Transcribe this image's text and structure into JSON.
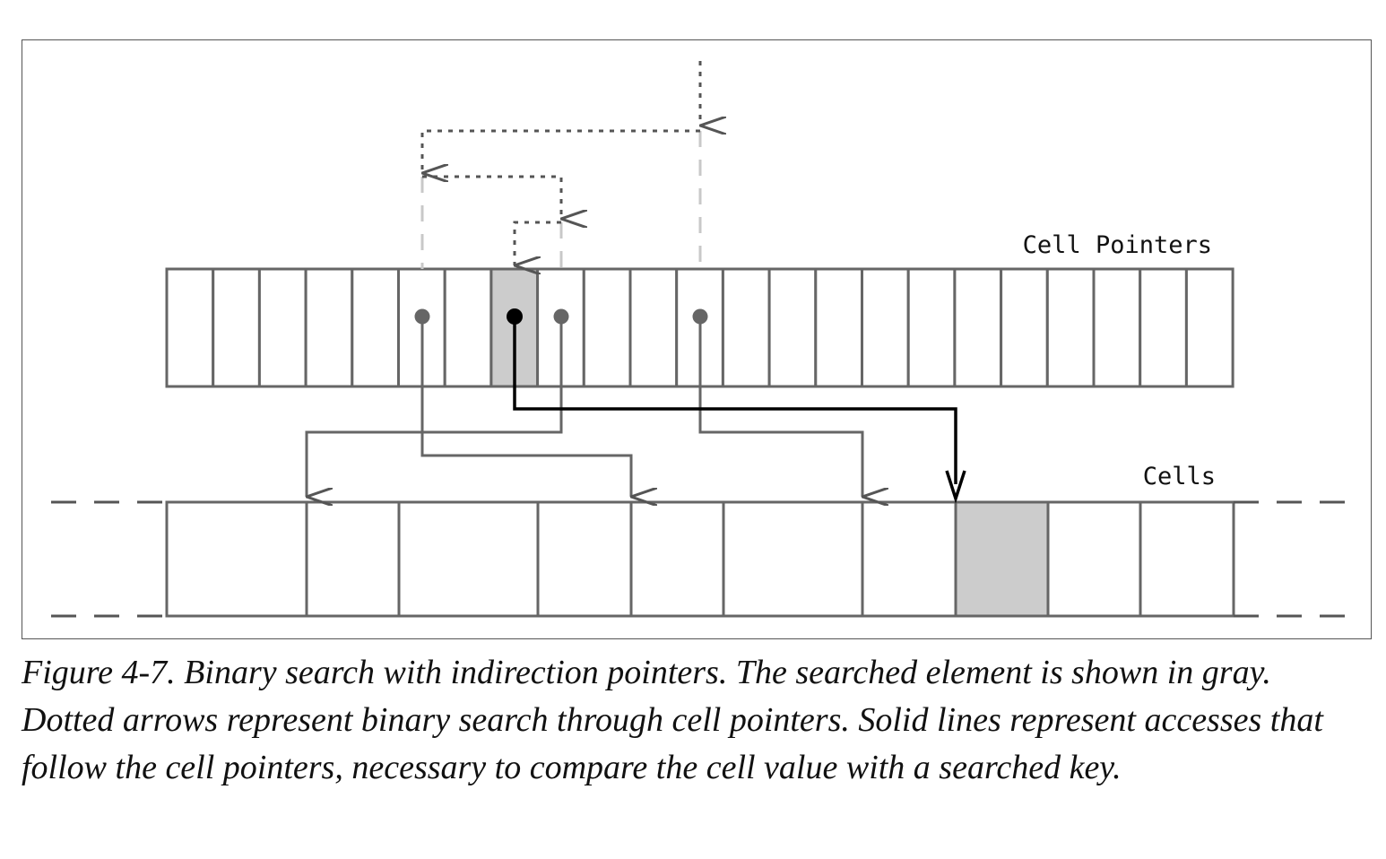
{
  "diagram": {
    "labels": {
      "cell_pointers": "Cell Pointers",
      "cells": "Cells"
    },
    "colors": {
      "stroke": "#666666",
      "highlight_fill": "#cccccc",
      "selected_stroke": "#000000",
      "dotted_stroke": "#555555",
      "dashed_light": "#c8c8c8"
    },
    "pointer_slot_count": 23,
    "cell_count": 10,
    "searched_pointer_index": 7,
    "searched_cell_index": 7,
    "binary_search_probe_indices": [
      11,
      5,
      8,
      7
    ]
  },
  "caption": {
    "text": "Figure 4-7. Binary search with indirection pointers. The searched element is shown in gray. Dotted arrows represent binary search through cell pointers. Solid lines represent accesses that follow the cell pointers, necessary to compare the cell value with a searched key."
  }
}
